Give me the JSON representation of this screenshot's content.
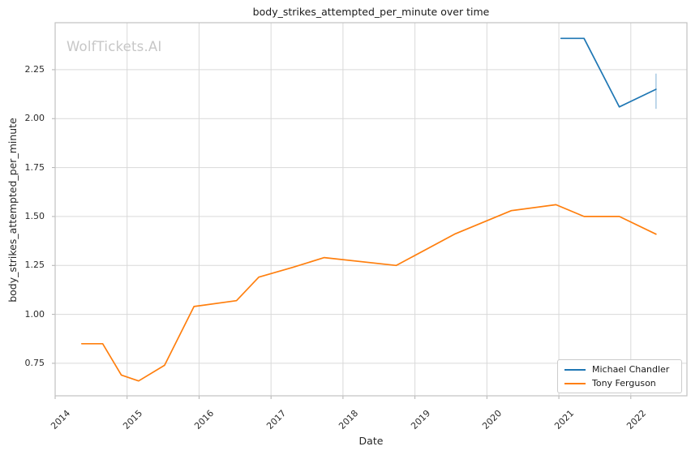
{
  "watermark": "WolfTickets.AI",
  "chart_data": {
    "type": "line",
    "title": "body_strikes_attempted_per_minute over time",
    "xlabel": "Date",
    "ylabel": "body_strikes_attempted_per_minute",
    "xlim": [
      2014.0,
      2022.78
    ],
    "ylim": [
      0.584,
      2.49
    ],
    "x_ticks": [
      2014,
      2015,
      2016,
      2017,
      2018,
      2019,
      2020,
      2021,
      2022
    ],
    "y_ticks": [
      0.75,
      1.0,
      1.25,
      1.5,
      1.75,
      2.0,
      2.25
    ],
    "grid": true,
    "grid_color": "#d9d9d9",
    "spine_color": "#c2c2c2",
    "tick_color": "#b0b0b0",
    "legend_position": "lower right",
    "series": [
      {
        "name": "Michael Chandler",
        "color": "#1f77b4",
        "x": [
          2021.03,
          2021.35,
          2021.84,
          2022.35
        ],
        "y": [
          2.41,
          2.41,
          2.06,
          2.15
        ]
      },
      {
        "name": "Tony Ferguson",
        "color": "#ff7f0e",
        "x": [
          2014.37,
          2014.66,
          2014.92,
          2015.16,
          2015.52,
          2015.93,
          2016.52,
          2016.83,
          2017.3,
          2017.74,
          2018.74,
          2019.55,
          2020.34,
          2020.96,
          2021.35,
          2021.84,
          2022.35
        ],
        "y": [
          0.85,
          0.85,
          0.69,
          0.66,
          0.74,
          1.04,
          1.07,
          1.19,
          1.24,
          1.29,
          1.25,
          1.41,
          1.53,
          1.56,
          1.5,
          1.5,
          1.41
        ]
      }
    ],
    "error_bar": {
      "series": "Michael Chandler",
      "x": 2022.35,
      "y_low": 2.05,
      "y_high": 2.23,
      "color": "#aecde5"
    }
  }
}
